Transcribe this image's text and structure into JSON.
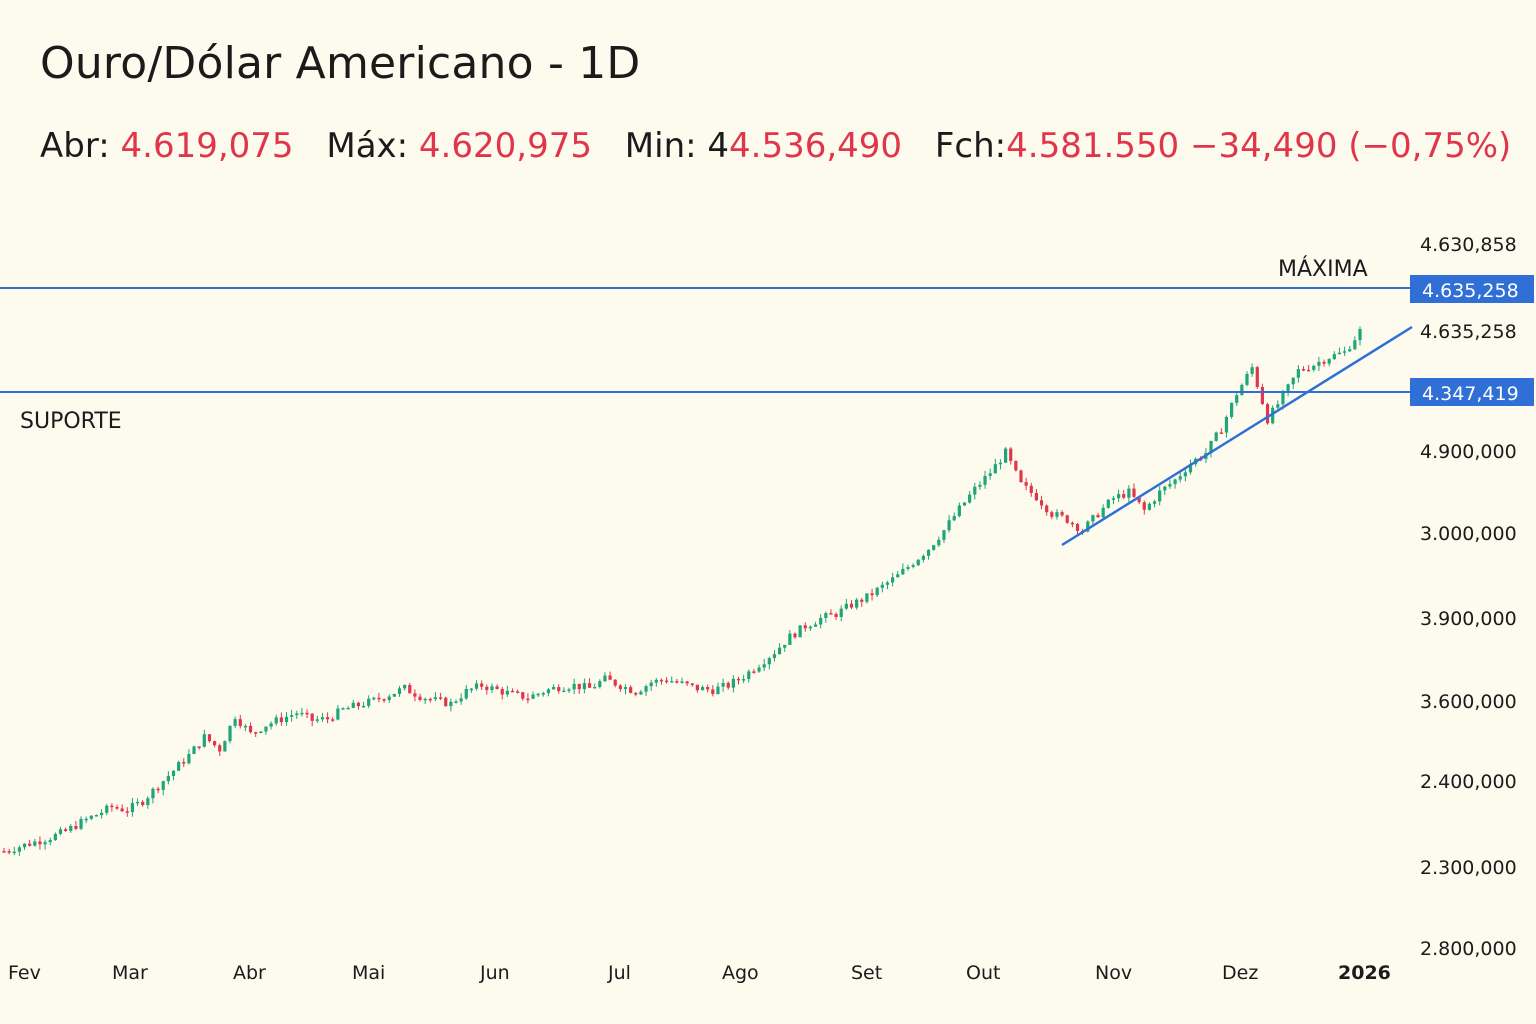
{
  "header": {
    "title": "Ouro/Dólar Americano - 1D",
    "open_label": "Abr:",
    "open_value": "4.619,075",
    "high_label": "Máx:",
    "high_value": "4.620,975",
    "low_label": "Min: 4",
    "low_value": "4.536,490",
    "close_label": "Fch:",
    "close_value": "4.581.550",
    "change_value": "−34,490 (−0,75%)"
  },
  "colors": {
    "background": "#fcfbee",
    "up": "#1ea57a",
    "down": "#e0354a",
    "line": "#2f6fd6",
    "tag": "#2f6fd6"
  },
  "chart_data": {
    "type": "candlestick",
    "title": "Ouro/Dólar Americano - 1D",
    "x_ticks": [
      "Fev",
      "Mar",
      "Abr",
      "Mai",
      "Jun",
      "Jul",
      "Ago",
      "Set",
      "Out",
      "Nov",
      "Dez",
      "2026"
    ],
    "y_ticks": [
      "4.630,858",
      "4.635,258",
      "4.900,000",
      "3.000,000",
      "3.900,000",
      "3.600,000",
      "2.400,000",
      "2.300,000",
      "2.800,000"
    ],
    "price_tags": [
      "4.635,258",
      "4.347,419"
    ],
    "annotations": {
      "resistance": "MÁXIMA",
      "support": "SUPORTE"
    },
    "approx_scale": {
      "top_value": 4640,
      "bottom_value": 2700
    },
    "series": [
      {
        "name": "close",
        "values": [
          2795,
          2810,
          2825,
          2840,
          2860,
          2890,
          2915,
          2940,
          2930,
          2960,
          3010,
          3060,
          3110,
          3170,
          3130,
          3240,
          3180,
          3210,
          3230,
          3250,
          3225,
          3230,
          3260,
          3275,
          3290,
          3310,
          3330,
          3305,
          3290,
          3280,
          3320,
          3340,
          3325,
          3310,
          3300,
          3320,
          3335,
          3340,
          3330,
          3360,
          3340,
          3320,
          3350,
          3360,
          3345,
          3330,
          3325,
          3340,
          3370,
          3410,
          3450,
          3500,
          3535,
          3560,
          3575,
          3605,
          3630,
          3665,
          3700,
          3745,
          3790,
          3850,
          3920,
          3985,
          4040,
          4105,
          4000,
          3960,
          3905,
          3885,
          3850,
          3905,
          3955,
          3975,
          3915,
          3975,
          4015,
          4070,
          4105,
          4185,
          4300,
          4385,
          4215,
          4290,
          4375,
          4395,
          4420,
          4435,
          4505
        ]
      }
    ],
    "trendline": {
      "from": [
        "Out",
        3880
      ],
      "to": [
        "2026",
        4380
      ]
    },
    "support_level": 4347.419,
    "high_level": 4635.258
  }
}
